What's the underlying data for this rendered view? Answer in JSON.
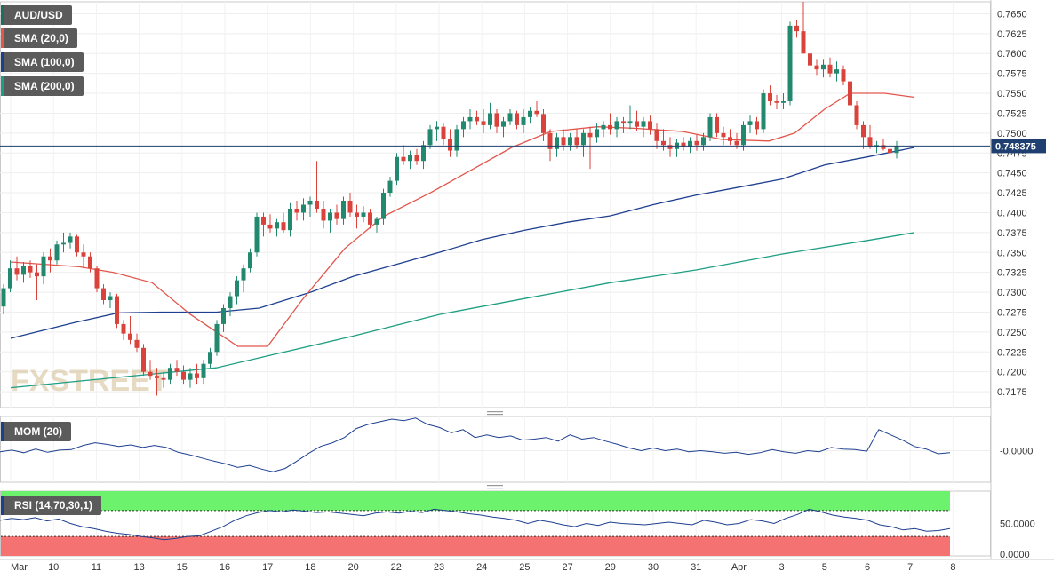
{
  "chart_data": {
    "type": "candlestick",
    "symbol": "AUD/USD",
    "indicators": [
      {
        "name": "SMA (20,0)",
        "color": "#e2564c"
      },
      {
        "name": "SMA (100,0)",
        "color": "#1e3f8f"
      },
      {
        "name": "SMA (200,0)",
        "color": "#1d9e82"
      }
    ],
    "last_price": "0.748375",
    "price_ticks": [
      "0.7650",
      "0.7625",
      "0.7600",
      "0.7575",
      "0.7550",
      "0.7525",
      "0.7500",
      "0.7475",
      "0.7450",
      "0.7425",
      "0.7400",
      "0.7375",
      "0.7350",
      "0.7325",
      "0.7300",
      "0.7275",
      "0.7250",
      "0.7225",
      "0.7200",
      "0.7175"
    ],
    "ylim": [
      0.7155,
      0.7665
    ],
    "x_labels": [
      "Mar",
      "10",
      "11",
      "13",
      "15",
      "16",
      "17",
      "18",
      "20",
      "22",
      "23",
      "24",
      "25",
      "27",
      "29",
      "30",
      "31",
      "Apr",
      "3",
      "5",
      "6",
      "7",
      "8"
    ],
    "x_domain": [
      0,
      22
    ],
    "bar_count": 143,
    "candles": [
      [
        0.7282,
        0.731,
        0.7272,
        0.7305
      ],
      [
        0.7305,
        0.734,
        0.73,
        0.733
      ],
      [
        0.733,
        0.7345,
        0.7315,
        0.7322
      ],
      [
        0.7322,
        0.7338,
        0.7312,
        0.7333
      ],
      [
        0.7333,
        0.734,
        0.7318,
        0.7325
      ],
      [
        0.7325,
        0.7335,
        0.729,
        0.732
      ],
      [
        0.732,
        0.735,
        0.731,
        0.7345
      ],
      [
        0.7345,
        0.7355,
        0.7325,
        0.734
      ],
      [
        0.734,
        0.7365,
        0.7335,
        0.736
      ],
      [
        0.736,
        0.7375,
        0.735,
        0.7362
      ],
      [
        0.7362,
        0.7375,
        0.7355,
        0.737
      ],
      [
        0.737,
        0.7372,
        0.7345,
        0.735
      ],
      [
        0.735,
        0.736,
        0.733,
        0.7345
      ],
      [
        0.7345,
        0.735,
        0.7325,
        0.733
      ],
      [
        0.733,
        0.7333,
        0.73,
        0.7305
      ],
      [
        0.7305,
        0.731,
        0.7285,
        0.729
      ],
      [
        0.729,
        0.73,
        0.728,
        0.7295
      ],
      [
        0.7295,
        0.7298,
        0.7255,
        0.726
      ],
      [
        0.726,
        0.7265,
        0.724,
        0.7248
      ],
      [
        0.7248,
        0.727,
        0.7235,
        0.724
      ],
      [
        0.724,
        0.7248,
        0.7225,
        0.723
      ],
      [
        0.723,
        0.7235,
        0.7195,
        0.72
      ],
      [
        0.72,
        0.7215,
        0.719,
        0.7195
      ],
      [
        0.7195,
        0.7205,
        0.717,
        0.7192
      ],
      [
        0.7192,
        0.72,
        0.718,
        0.719
      ],
      [
        0.719,
        0.721,
        0.7185,
        0.7205
      ],
      [
        0.7205,
        0.7215,
        0.7195,
        0.72
      ],
      [
        0.72,
        0.7208,
        0.7185,
        0.719
      ],
      [
        0.719,
        0.7205,
        0.718,
        0.7198
      ],
      [
        0.7198,
        0.721,
        0.7185,
        0.7192
      ],
      [
        0.7192,
        0.7215,
        0.7185,
        0.721
      ],
      [
        0.721,
        0.723,
        0.7205,
        0.7225
      ],
      [
        0.7225,
        0.7265,
        0.722,
        0.726
      ],
      [
        0.726,
        0.7285,
        0.725,
        0.728
      ],
      [
        0.728,
        0.73,
        0.727,
        0.7295
      ],
      [
        0.7295,
        0.732,
        0.7285,
        0.7315
      ],
      [
        0.7315,
        0.7335,
        0.73,
        0.733
      ],
      [
        0.733,
        0.7355,
        0.7325,
        0.735
      ],
      [
        0.735,
        0.74,
        0.7345,
        0.7395
      ],
      [
        0.7395,
        0.74,
        0.737,
        0.7385
      ],
      [
        0.7385,
        0.7398,
        0.7375,
        0.738
      ],
      [
        0.738,
        0.7392,
        0.737,
        0.7388
      ],
      [
        0.7388,
        0.74,
        0.7375,
        0.7378
      ],
      [
        0.7378,
        0.7412,
        0.737,
        0.7405
      ],
      [
        0.7405,
        0.7415,
        0.739,
        0.74
      ],
      [
        0.74,
        0.7418,
        0.739,
        0.741
      ],
      [
        0.741,
        0.742,
        0.7395,
        0.7415
      ],
      [
        0.7415,
        0.7465,
        0.74,
        0.7405
      ],
      [
        0.7405,
        0.7415,
        0.738,
        0.739
      ],
      [
        0.739,
        0.7405,
        0.7375,
        0.74
      ],
      [
        0.74,
        0.741,
        0.7385,
        0.7392
      ],
      [
        0.7392,
        0.742,
        0.7385,
        0.7415
      ],
      [
        0.7415,
        0.7425,
        0.7395,
        0.74
      ],
      [
        0.74,
        0.741,
        0.738,
        0.7395
      ],
      [
        0.7395,
        0.7408,
        0.7388,
        0.74
      ],
      [
        0.74,
        0.7405,
        0.738,
        0.7385
      ],
      [
        0.7385,
        0.7395,
        0.7375,
        0.7392
      ],
      [
        0.7392,
        0.743,
        0.7385,
        0.7425
      ],
      [
        0.7425,
        0.7445,
        0.742,
        0.744
      ],
      [
        0.744,
        0.7475,
        0.7435,
        0.747
      ],
      [
        0.747,
        0.7485,
        0.746,
        0.7465
      ],
      [
        0.7465,
        0.7478,
        0.7455,
        0.7472
      ],
      [
        0.7472,
        0.748,
        0.746,
        0.7465
      ],
      [
        0.7465,
        0.749,
        0.7455,
        0.7485
      ],
      [
        0.7485,
        0.751,
        0.748,
        0.7505
      ],
      [
        0.7505,
        0.7515,
        0.749,
        0.7508
      ],
      [
        0.7508,
        0.7512,
        0.7485,
        0.7492
      ],
      [
        0.7492,
        0.7505,
        0.747,
        0.7478
      ],
      [
        0.7478,
        0.751,
        0.747,
        0.7505
      ],
      [
        0.7505,
        0.752,
        0.7495,
        0.7515
      ],
      [
        0.7515,
        0.753,
        0.7505,
        0.752
      ],
      [
        0.752,
        0.7528,
        0.751,
        0.7515
      ],
      [
        0.7515,
        0.753,
        0.75,
        0.751
      ],
      [
        0.751,
        0.7538,
        0.7505,
        0.7525
      ],
      [
        0.7525,
        0.753,
        0.75,
        0.7508
      ],
      [
        0.7508,
        0.752,
        0.7495,
        0.7515
      ],
      [
        0.7515,
        0.753,
        0.751,
        0.7525
      ],
      [
        0.7525,
        0.7528,
        0.7505,
        0.751
      ],
      [
        0.751,
        0.753,
        0.75,
        0.752
      ],
      [
        0.752,
        0.7532,
        0.7512,
        0.7528
      ],
      [
        0.7528,
        0.754,
        0.752,
        0.7524
      ],
      [
        0.7524,
        0.753,
        0.749,
        0.75
      ],
      [
        0.75,
        0.7505,
        0.7465,
        0.748
      ],
      [
        0.748,
        0.75,
        0.747,
        0.7495
      ],
      [
        0.7495,
        0.7505,
        0.7478,
        0.7485
      ],
      [
        0.7485,
        0.75,
        0.7478,
        0.7495
      ],
      [
        0.7495,
        0.7505,
        0.748,
        0.7485
      ],
      [
        0.7485,
        0.7505,
        0.747,
        0.75
      ],
      [
        0.75,
        0.7508,
        0.7455,
        0.7495
      ],
      [
        0.7495,
        0.7512,
        0.7488,
        0.7505
      ],
      [
        0.7505,
        0.7515,
        0.7495,
        0.751
      ],
      [
        0.751,
        0.7525,
        0.7498,
        0.7505
      ],
      [
        0.7505,
        0.752,
        0.7495,
        0.7515
      ],
      [
        0.7515,
        0.752,
        0.75,
        0.7512
      ],
      [
        0.7512,
        0.7535,
        0.7505,
        0.7515
      ],
      [
        0.7515,
        0.7528,
        0.7502,
        0.7508
      ],
      [
        0.7508,
        0.752,
        0.7495,
        0.7515
      ],
      [
        0.7515,
        0.7522,
        0.7498,
        0.7505
      ],
      [
        0.7505,
        0.7512,
        0.748,
        0.749
      ],
      [
        0.749,
        0.7505,
        0.7478,
        0.7485
      ],
      [
        0.7485,
        0.7495,
        0.747,
        0.748
      ],
      [
        0.748,
        0.7492,
        0.747,
        0.7488
      ],
      [
        0.7488,
        0.7495,
        0.7478,
        0.7482
      ],
      [
        0.7482,
        0.7495,
        0.7475,
        0.749
      ],
      [
        0.749,
        0.7498,
        0.7478,
        0.7485
      ],
      [
        0.7485,
        0.75,
        0.7478,
        0.7495
      ],
      [
        0.7495,
        0.7525,
        0.749,
        0.752
      ],
      [
        0.752,
        0.7525,
        0.7495,
        0.75
      ],
      [
        0.75,
        0.7508,
        0.7485,
        0.7495
      ],
      [
        0.7495,
        0.7505,
        0.7485,
        0.749
      ],
      [
        0.749,
        0.75,
        0.748,
        0.7485
      ],
      [
        0.7485,
        0.7515,
        0.7478,
        0.751
      ],
      [
        0.751,
        0.7522,
        0.75,
        0.7515
      ],
      [
        0.7515,
        0.752,
        0.7498,
        0.7505
      ],
      [
        0.7505,
        0.7555,
        0.75,
        0.755
      ],
      [
        0.755,
        0.756,
        0.7535,
        0.754
      ],
      [
        0.754,
        0.7548,
        0.753,
        0.7538
      ],
      [
        0.7538,
        0.755,
        0.753,
        0.754
      ],
      [
        0.754,
        0.764,
        0.7535,
        0.7635
      ],
      [
        0.7635,
        0.7642,
        0.762,
        0.7628
      ],
      [
        0.7628,
        0.7665,
        0.76,
        0.76
      ],
      [
        0.76,
        0.7605,
        0.758,
        0.7585
      ],
      [
        0.7585,
        0.7592,
        0.7572,
        0.758
      ],
      [
        0.758,
        0.7592,
        0.757,
        0.7586
      ],
      [
        0.7586,
        0.7595,
        0.757,
        0.7575
      ],
      [
        0.7575,
        0.759,
        0.7565,
        0.758
      ],
      [
        0.758,
        0.7585,
        0.756,
        0.7565
      ],
      [
        0.7565,
        0.757,
        0.753,
        0.7535
      ],
      [
        0.7535,
        0.754,
        0.7505,
        0.751
      ],
      [
        0.751,
        0.7515,
        0.748,
        0.7495
      ],
      [
        0.7495,
        0.751,
        0.748,
        0.7482
      ],
      [
        0.7482,
        0.749,
        0.7475,
        0.7485
      ],
      [
        0.7485,
        0.7492,
        0.7478,
        0.748
      ],
      [
        0.748,
        0.749,
        0.7468,
        0.7475
      ],
      [
        0.7475,
        0.749,
        0.7468,
        0.7484
      ]
    ],
    "sma20": [
      [
        0,
        0.7338
      ],
      [
        1.6,
        0.7332
      ],
      [
        2.4,
        0.7325
      ],
      [
        3.3,
        0.7312
      ],
      [
        4.2,
        0.7272
      ],
      [
        5.3,
        0.7232
      ],
      [
        6.0,
        0.7232
      ],
      [
        6.8,
        0.729
      ],
      [
        7.8,
        0.7355
      ],
      [
        8.7,
        0.7395
      ],
      [
        9.8,
        0.7425
      ],
      [
        10.8,
        0.7455
      ],
      [
        11.7,
        0.7482
      ],
      [
        12.6,
        0.7502
      ],
      [
        13.7,
        0.7508
      ],
      [
        14.6,
        0.7506
      ],
      [
        15.7,
        0.7502
      ],
      [
        16.6,
        0.7492
      ],
      [
        17.7,
        0.749
      ],
      [
        18.3,
        0.75
      ],
      [
        19.0,
        0.753
      ],
      [
        19.6,
        0.755
      ],
      [
        20.4,
        0.755
      ],
      [
        21.1,
        0.7545
      ]
    ],
    "sma100": [
      [
        0,
        0.7242
      ],
      [
        1.5,
        0.7262
      ],
      [
        2.5,
        0.7274
      ],
      [
        3.5,
        0.7275
      ],
      [
        4.8,
        0.7275
      ],
      [
        5.8,
        0.728
      ],
      [
        7.0,
        0.73
      ],
      [
        8.0,
        0.732
      ],
      [
        9.0,
        0.7335
      ],
      [
        10.0,
        0.735
      ],
      [
        11.0,
        0.7366
      ],
      [
        12.0,
        0.7378
      ],
      [
        13.0,
        0.7388
      ],
      [
        14.0,
        0.7396
      ],
      [
        15.0,
        0.741
      ],
      [
        16.0,
        0.7422
      ],
      [
        17.0,
        0.7432
      ],
      [
        18.0,
        0.7442
      ],
      [
        19.0,
        0.746
      ],
      [
        20.0,
        0.747
      ],
      [
        21.1,
        0.7482
      ]
    ],
    "sma200": [
      [
        0,
        0.718
      ],
      [
        4.8,
        0.7205
      ],
      [
        6.0,
        0.722
      ],
      [
        8.0,
        0.7245
      ],
      [
        10.0,
        0.7272
      ],
      [
        12.0,
        0.7292
      ],
      [
        14.0,
        0.7312
      ],
      [
        16.0,
        0.7328
      ],
      [
        18.0,
        0.7348
      ],
      [
        20.0,
        0.7365
      ],
      [
        21.1,
        0.7375
      ]
    ],
    "mom": {
      "label": "MOM (20)",
      "tick": "-0.0000",
      "range": [
        -0.006,
        0.0065
      ],
      "values": [
        -0.0002,
        0.0001,
        -0.0004,
        0.0003,
        -0.0003,
        0.0001,
        0.0002,
        0.001,
        0.0015,
        0.0012,
        0.0008,
        0.0011,
        0.0006,
        0.001,
        0.0006,
        -0.0003,
        -0.0008,
        -0.0014,
        -0.002,
        -0.0025,
        -0.0032,
        -0.0028,
        -0.0035,
        -0.004,
        -0.0034,
        -0.002,
        -0.0005,
        0.0008,
        0.0015,
        0.0025,
        0.0042,
        0.005,
        0.0055,
        0.006,
        0.0057,
        0.0062,
        0.005,
        0.0044,
        0.0034,
        0.004,
        0.0025,
        0.003,
        0.0025,
        0.0028,
        0.002,
        0.0022,
        0.0025,
        0.0018,
        0.003,
        0.0022,
        0.0025,
        0.0018,
        0.0012,
        0.0005,
        0.0,
        0.0005,
        0.0,
        0.0003,
        -0.0002,
        0.0,
        -0.0002,
        -0.0005,
        -0.0003,
        -0.0007,
        -0.0004,
        0.0002,
        -0.0002,
        -0.0005,
        0.0,
        -0.0002,
        0.0006,
        0.0003,
        0.0002,
        -0.0001,
        0.004,
        0.003,
        0.002,
        0.0008,
        0.0003,
        -0.0006,
        -0.0004
      ]
    },
    "rsi": {
      "label": "RSI (14,70,30,1)",
      "levels": [
        70,
        30
      ],
      "ticks": [
        "50.0000",
        "0.0000"
      ],
      "range": [
        0,
        100
      ],
      "values": [
        55,
        58,
        56,
        59,
        54,
        57,
        50,
        45,
        42,
        38,
        35,
        33,
        30,
        28,
        25,
        27,
        30,
        31,
        38,
        45,
        55,
        62,
        67,
        70,
        68,
        71,
        69,
        67,
        68,
        66,
        64,
        62,
        66,
        68,
        66,
        69,
        67,
        72,
        70,
        68,
        65,
        63,
        60,
        58,
        55,
        50,
        55,
        52,
        48,
        45,
        50,
        47,
        52,
        50,
        49,
        48,
        50,
        52,
        50,
        48,
        55,
        52,
        48,
        50,
        56,
        54,
        50,
        58,
        64,
        72,
        68,
        63,
        60,
        58,
        55,
        48,
        45,
        40,
        42,
        38,
        39,
        42
      ]
    }
  },
  "watermark": "FXSTREET"
}
